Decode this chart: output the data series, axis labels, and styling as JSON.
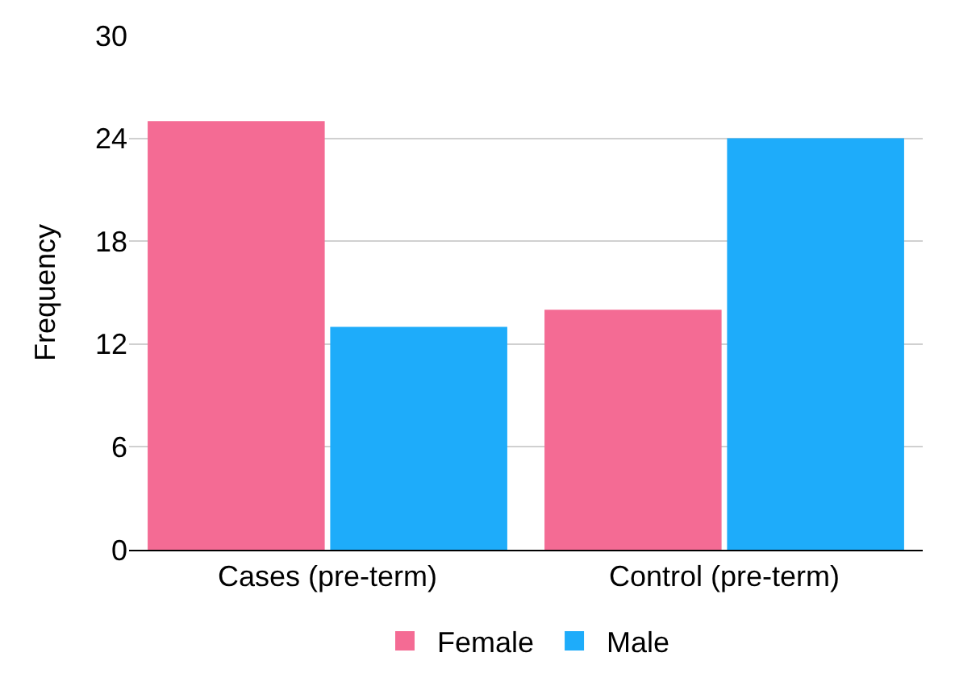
{
  "chart_data": {
    "type": "bar",
    "ylabel": "Frequency",
    "categories": [
      "Cases (pre-term)",
      "Control (pre-term)"
    ],
    "series": [
      {
        "name": "Female",
        "color": "#f46b94",
        "values": [
          25,
          14
        ]
      },
      {
        "name": "Male",
        "color": "#1eacfa",
        "values": [
          13,
          24
        ]
      }
    ],
    "ylim": [
      0,
      30
    ],
    "yticks": [
      0,
      6,
      12,
      18,
      24,
      30
    ],
    "grid": "y",
    "legend": "bottom"
  }
}
